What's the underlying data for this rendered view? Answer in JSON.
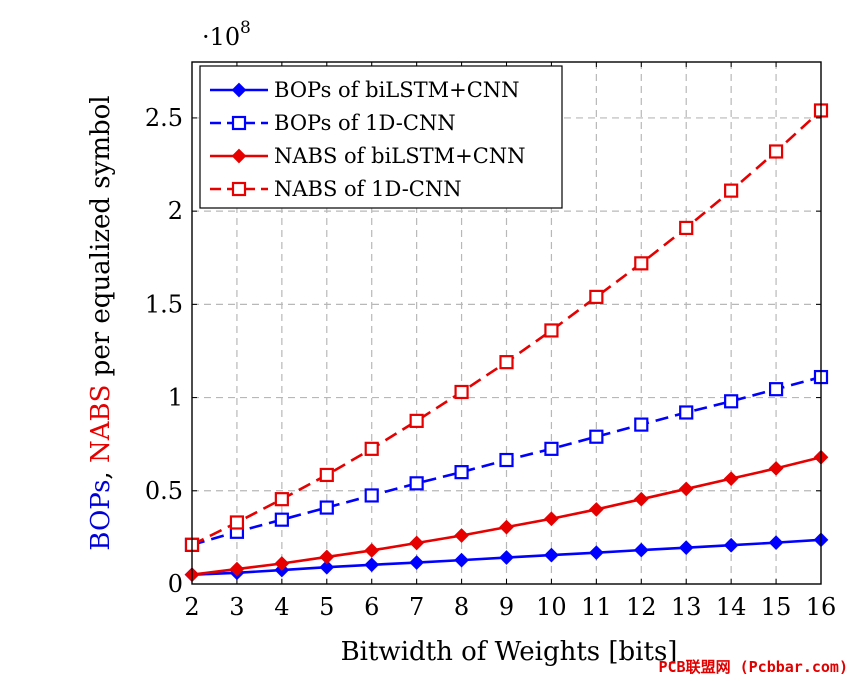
{
  "chart_data": {
    "type": "line",
    "title": "",
    "xlabel": "Bitwidth of Weights [bits]",
    "ylabel_parts": [
      {
        "text": "BOPs",
        "color": "#0000dd"
      },
      {
        "text": ", ",
        "color": "#000000"
      },
      {
        "text": "NABS",
        "color": "#e60000"
      },
      {
        "text": " per equalized symbol",
        "color": "#000000"
      }
    ],
    "y_multiplier_label": "·10",
    "y_multiplier_exponent": "8",
    "x": [
      2,
      3,
      4,
      5,
      6,
      7,
      8,
      9,
      10,
      11,
      12,
      13,
      14,
      15,
      16
    ],
    "xlim": [
      2,
      16
    ],
    "ylim": [
      0,
      2.8
    ],
    "x_ticks": [
      2,
      3,
      4,
      5,
      6,
      7,
      8,
      9,
      10,
      11,
      12,
      13,
      14,
      15,
      16
    ],
    "y_ticks": [
      0,
      0.5,
      1,
      1.5,
      2,
      2.5
    ],
    "y_tick_labels": [
      "0",
      "0.5",
      "1",
      "1.5",
      "2",
      "2.5"
    ],
    "grid": true,
    "legend_position": "top-left",
    "series": [
      {
        "name": "BOPs of biLSTM+CNN",
        "color": "#0000ff",
        "dashed": false,
        "marker": "diamond-filled",
        "values": [
          0.05,
          0.06,
          0.075,
          0.09,
          0.103,
          0.115,
          0.128,
          0.142,
          0.155,
          0.168,
          0.182,
          0.195,
          0.208,
          0.222,
          0.237
        ]
      },
      {
        "name": "BOPs of 1D-CNN",
        "color": "#0000ff",
        "dashed": true,
        "marker": "square-open",
        "values": [
          0.21,
          0.28,
          0.345,
          0.41,
          0.475,
          0.54,
          0.6,
          0.665,
          0.725,
          0.79,
          0.855,
          0.92,
          0.98,
          1.045,
          1.11
        ]
      },
      {
        "name": "NABS of biLSTM+CNN",
        "color": "#e60000",
        "dashed": false,
        "marker": "diamond-filled",
        "values": [
          0.05,
          0.08,
          0.11,
          0.145,
          0.18,
          0.22,
          0.26,
          0.305,
          0.35,
          0.4,
          0.455,
          0.51,
          0.565,
          0.62,
          0.68
        ]
      },
      {
        "name": "NABS of 1D-CNN",
        "color": "#e60000",
        "dashed": true,
        "marker": "square-open",
        "values": [
          0.21,
          0.33,
          0.455,
          0.585,
          0.725,
          0.875,
          1.03,
          1.19,
          1.36,
          1.54,
          1.72,
          1.91,
          2.11,
          2.32,
          2.54
        ]
      }
    ]
  },
  "watermark": "PCB联盟网 (Pcbbar.com)"
}
